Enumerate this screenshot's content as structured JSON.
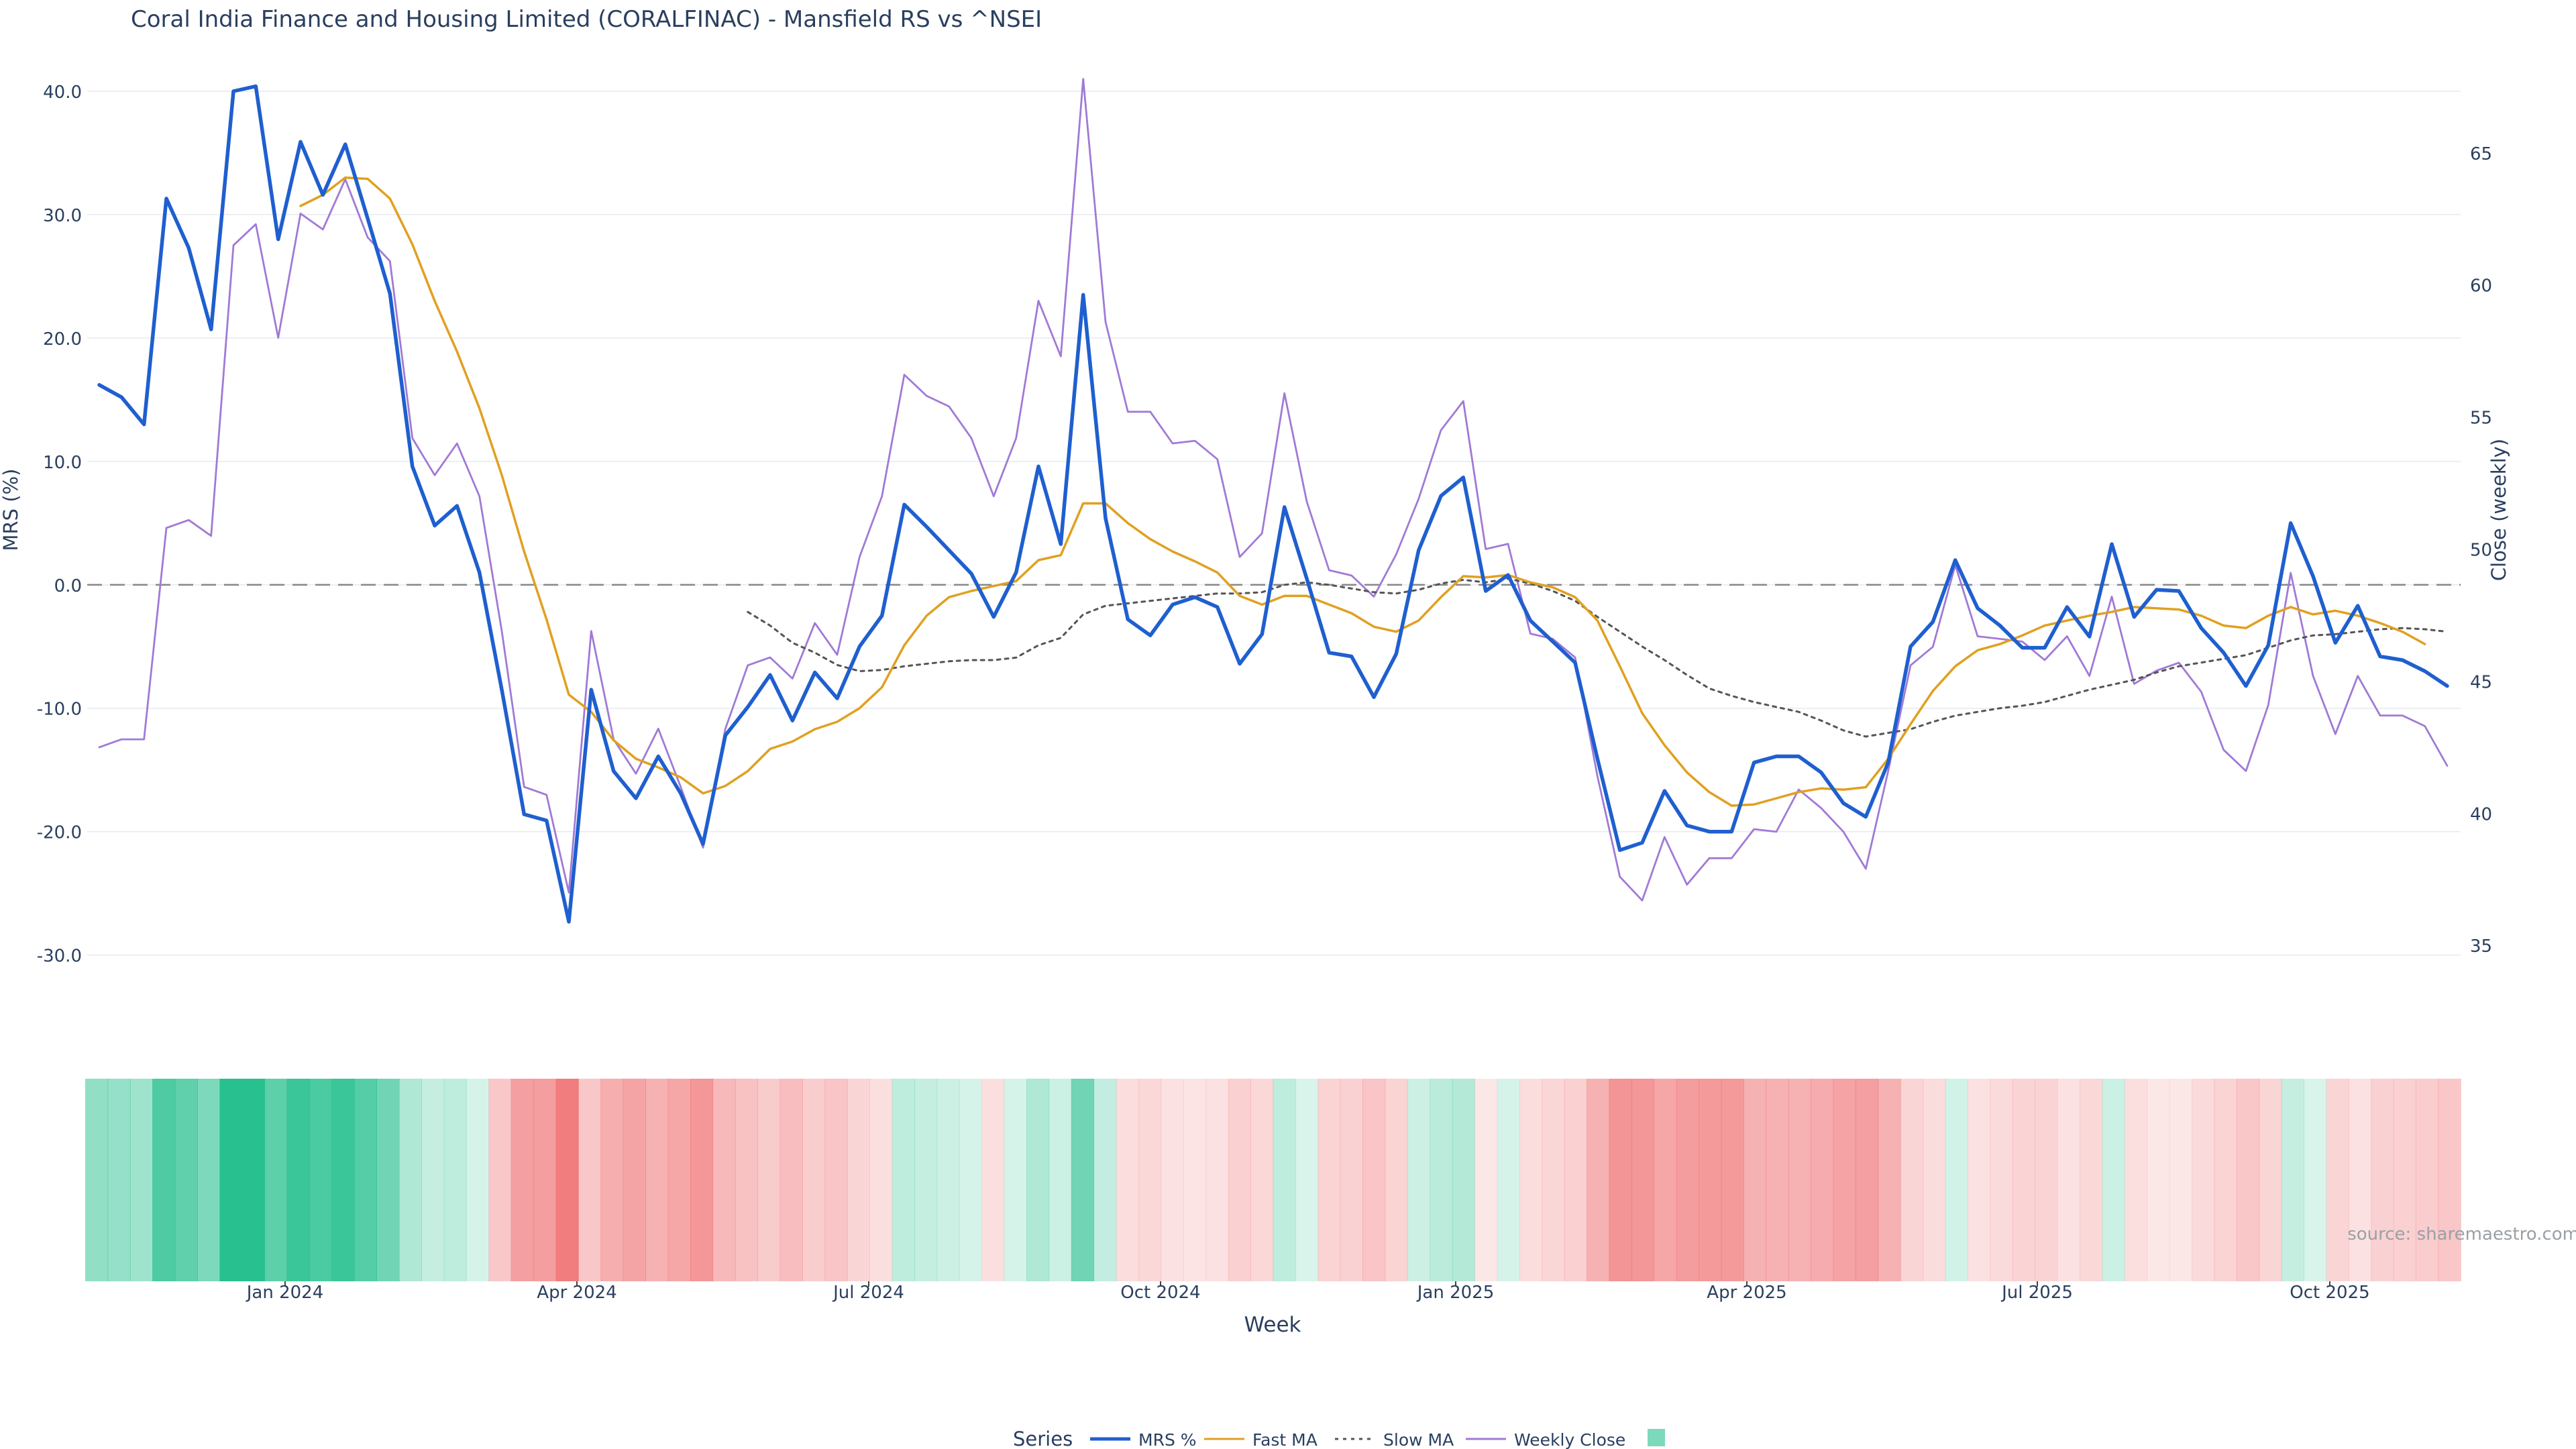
{
  "title": "Coral India Finance and Housing Limited (CORALFINAC) - Mansfield RS vs ^NSEI",
  "source": "source: sharemaestro.com",
  "colors": {
    "mrs": "#1f5fcf",
    "fast_ma": "#e0a020",
    "slow_ma": "#555555",
    "close": "#a07ad6",
    "zero_line": "#888888",
    "pos_heat": "#27c08e",
    "neg_heat": "#f0787a",
    "grid": "#e6e9ef",
    "text": "#2a3f5f"
  },
  "legend": {
    "title": "Series",
    "items": [
      {
        "key": "mrs",
        "label": "MRS %",
        "style": "solid"
      },
      {
        "key": "fast_ma",
        "label": "Fast MA",
        "style": "solid"
      },
      {
        "key": "slow_ma",
        "label": "Slow MA",
        "style": "dotted"
      },
      {
        "key": "close",
        "label": "Weekly Close",
        "style": "solid"
      },
      {
        "key": "heat",
        "label": "",
        "style": "square"
      }
    ]
  },
  "chart_data": {
    "type": "line",
    "xlabel": "Week",
    "ylabel_left": "MRS (%)",
    "ylabel_right": "Close (weekly)",
    "x_ticks": [
      "Jan 2024",
      "Apr 2024",
      "Jul 2024",
      "Oct 2024",
      "Jan 2025",
      "Apr 2025",
      "Jul 2025",
      "Oct 2025"
    ],
    "y_ticks_left": [
      "40.0",
      "30.0",
      "20.0",
      "10.0",
      "0.0",
      "-10.0",
      "-20.0",
      "-30.0"
    ],
    "y_ticks_right": [
      "65",
      "60",
      "55",
      "50",
      "45",
      "40",
      "35"
    ],
    "ylim_left": [
      -33.5,
      42.5
    ],
    "ylim_right": [
      33.0,
      68.5
    ],
    "weeks": 106,
    "grid": true,
    "legend_position": "bottom",
    "series": [
      {
        "key": "mrs",
        "name": "MRS %",
        "axis": "left",
        "values": [
          16.2,
          15.2,
          13.0,
          31.3,
          27.3,
          20.7,
          40.0,
          40.4,
          28.0,
          35.9,
          31.6,
          35.7,
          29.7,
          23.6,
          9.6,
          4.8,
          6.4,
          1.0,
          -8.5,
          -18.6,
          -19.1,
          -27.3,
          -8.5,
          -15.1,
          -17.3,
          -13.9,
          -16.9,
          -21.0,
          -12.2,
          -9.9,
          -7.3,
          -11.0,
          -7.1,
          -9.2,
          -5.0,
          -2.5,
          6.5,
          4.7,
          2.8,
          0.9,
          -2.6,
          1.0,
          9.6,
          3.3,
          23.5,
          5.4,
          -2.8,
          -4.1,
          -1.6,
          -1.0,
          -1.8,
          -6.4,
          -4.0,
          6.3,
          0.5,
          -5.5,
          -5.8,
          -9.1,
          -5.6,
          2.8,
          7.2,
          8.7,
          -0.5,
          0.8,
          -2.9,
          -4.6,
          -6.3,
          -14.1,
          -21.5,
          -20.9,
          -16.7,
          -19.5,
          -20.0,
          -20.0,
          -14.4,
          -13.9,
          -13.9,
          -15.2,
          -17.7,
          -18.8,
          -14.4,
          -5.0,
          -3.0,
          2.0,
          -1.9,
          -3.3,
          -5.1,
          -5.1,
          -1.8,
          -4.2,
          3.3,
          -2.6,
          -0.4,
          -0.5,
          -3.5,
          -5.5,
          -8.2,
          -4.9,
          5.0,
          0.7,
          -4.7,
          -1.7,
          -5.8,
          -6.1,
          -7.0,
          -8.2
        ]
      },
      {
        "key": "fast_ma",
        "name": "Fast MA",
        "axis": "left",
        "values": [
          null,
          null,
          null,
          null,
          null,
          null,
          null,
          null,
          null,
          30.7,
          31.6,
          33.0,
          32.9,
          31.3,
          27.6,
          23.0,
          18.9,
          14.3,
          8.9,
          2.7,
          -2.8,
          -8.9,
          -10.3,
          -12.6,
          -14.1,
          -14.8,
          -15.6,
          -16.9,
          -16.3,
          -15.1,
          -13.3,
          -12.7,
          -11.7,
          -11.1,
          -10.0,
          -8.3,
          -4.9,
          -2.5,
          -1.0,
          -0.5,
          -0.1,
          0.3,
          2.0,
          2.4,
          6.6,
          6.6,
          5.0,
          3.7,
          2.7,
          1.9,
          1.0,
          -0.9,
          -1.6,
          -0.9,
          -0.9,
          -1.6,
          -2.3,
          -3.4,
          -3.8,
          -2.9,
          -1.0,
          0.7,
          0.6,
          0.8,
          0.2,
          -0.2,
          -1.0,
          -2.9,
          -6.6,
          -10.4,
          -13.0,
          -15.2,
          -16.8,
          -17.9,
          -17.8,
          -17.3,
          -16.8,
          -16.5,
          -16.6,
          -16.4,
          -14.1,
          -11.3,
          -8.6,
          -6.6,
          -5.3,
          -4.8,
          -4.1,
          -3.3,
          -2.9,
          -2.5,
          -2.2,
          -1.8,
          -1.9,
          -2.0,
          -2.5,
          -3.3,
          -3.5,
          -2.5,
          -1.8,
          -2.4,
          -2.1,
          -2.5,
          -3.1,
          -3.8,
          -4.8
        ]
      },
      {
        "key": "slow_ma",
        "name": "Slow MA",
        "axis": "left",
        "values": [
          null,
          null,
          null,
          null,
          null,
          null,
          null,
          null,
          null,
          null,
          null,
          null,
          null,
          null,
          null,
          null,
          null,
          null,
          null,
          null,
          null,
          null,
          null,
          null,
          null,
          null,
          null,
          null,
          null,
          -2.2,
          -3.3,
          -4.7,
          -5.5,
          -6.5,
          -7.0,
          -6.9,
          -6.6,
          -6.4,
          -6.2,
          -6.1,
          -6.1,
          -5.9,
          -4.9,
          -4.3,
          -2.4,
          -1.7,
          -1.5,
          -1.3,
          -1.1,
          -0.9,
          -0.7,
          -0.7,
          -0.6,
          0.0,
          0.2,
          0.0,
          -0.3,
          -0.6,
          -0.7,
          -0.4,
          0.1,
          0.4,
          0.2,
          0.5,
          0.1,
          -0.5,
          -1.3,
          -2.6,
          -3.8,
          -5.0,
          -6.1,
          -7.3,
          -8.4,
          -9.0,
          -9.5,
          -9.9,
          -10.3,
          -11.0,
          -11.8,
          -12.3,
          -12.0,
          -11.7,
          -11.1,
          -10.6,
          -10.3,
          -10.0,
          -9.8,
          -9.5,
          -9.0,
          -8.5,
          -8.1,
          -7.7,
          -7.1,
          -6.6,
          -6.3,
          -6.0,
          -5.7,
          -5.1,
          -4.5,
          -4.1,
          -4.0,
          -3.8,
          -3.6,
          -3.5,
          -3.6,
          -3.8
        ]
      },
      {
        "key": "close",
        "name": "Weekly Close",
        "axis": "right",
        "values": [
          42.5,
          42.8,
          42.8,
          50.8,
          51.1,
          50.5,
          61.5,
          62.3,
          58.0,
          62.7,
          62.1,
          64.0,
          61.8,
          60.9,
          54.2,
          52.8,
          54.0,
          52.0,
          46.9,
          41.0,
          40.7,
          37.0,
          46.9,
          42.8,
          41.5,
          43.2,
          41.0,
          38.7,
          43.2,
          45.6,
          45.9,
          45.1,
          47.2,
          46.0,
          49.7,
          52.0,
          56.6,
          55.8,
          55.4,
          54.2,
          52.0,
          54.2,
          59.4,
          57.3,
          67.8,
          58.6,
          55.2,
          55.2,
          54.0,
          54.1,
          53.4,
          49.7,
          50.6,
          55.9,
          51.8,
          49.2,
          49.0,
          48.2,
          49.8,
          51.9,
          54.5,
          55.6,
          50.0,
          50.2,
          46.8,
          46.6,
          45.9,
          41.4,
          37.6,
          36.7,
          39.1,
          37.3,
          38.3,
          38.3,
          39.4,
          39.3,
          40.9,
          40.2,
          39.3,
          37.9,
          41.6,
          45.6,
          46.3,
          49.4,
          46.7,
          46.6,
          46.5,
          45.8,
          46.7,
          45.2,
          48.2,
          44.9,
          45.4,
          45.7,
          44.6,
          42.4,
          41.6,
          44.1,
          49.1,
          45.2,
          43.0,
          45.2,
          43.7,
          43.7,
          43.3,
          41.8
        ]
      }
    ],
    "heatmap": {
      "metric": "MRS %",
      "positive_color": "#27c08e",
      "negative_color": "#f0787a"
    }
  }
}
